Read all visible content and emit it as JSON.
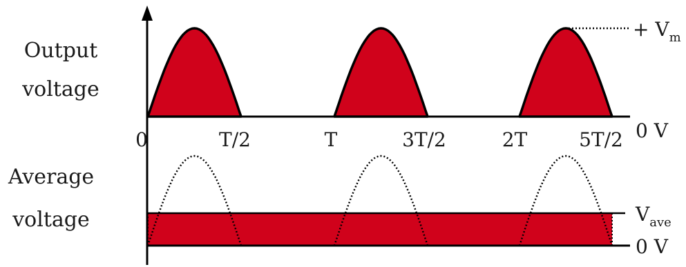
{
  "labels": {
    "output_row": [
      "Output",
      "voltage"
    ],
    "average_row": [
      "Average",
      "voltage"
    ],
    "ticks": [
      "0",
      "T/2",
      "T",
      "3T/2",
      "2T",
      "5T/2"
    ],
    "peak_level": {
      "prefix": "+ V",
      "subscript": "m"
    },
    "zero_level_top": "0 V",
    "ave_level": {
      "prefix": "V",
      "subscript": "ave"
    },
    "zero_level_bottom": "0 V"
  },
  "colors": {
    "fill": "#d0021b",
    "outline": "#000000",
    "axis": "#000000"
  },
  "waveform": {
    "type": "half-wave rectified sine",
    "half_cycles": [
      "0 to T/2",
      "T to 3T/2",
      "2T to 5T/2"
    ],
    "average_band": "0 V to V_ave"
  }
}
